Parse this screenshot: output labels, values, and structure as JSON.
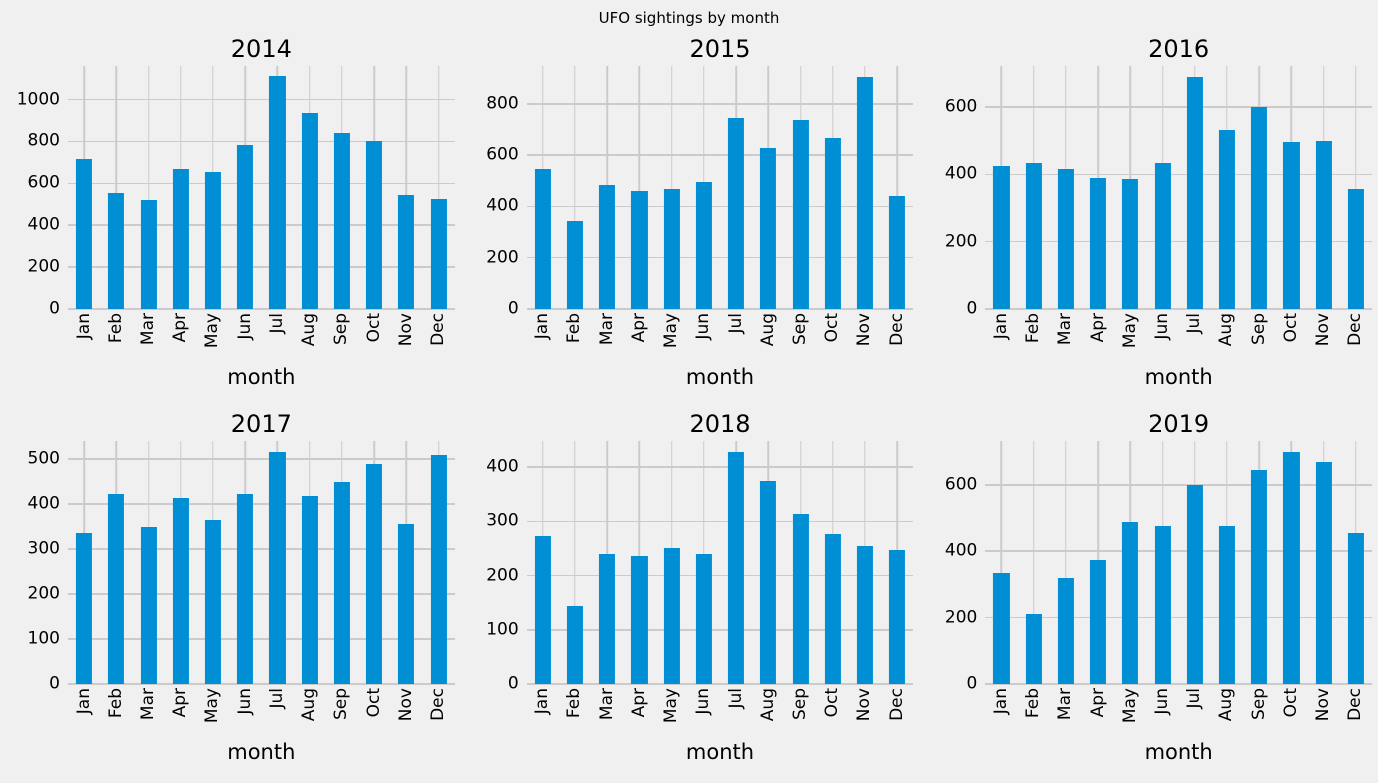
{
  "figure": {
    "title": "UFO sightings by month",
    "background_color": "#f0f0f0",
    "bar_color": "#008fd5",
    "grid_color": "#cbcbcb",
    "text_color": "#000000"
  },
  "chart_data": [
    {
      "type": "bar",
      "title": "2014",
      "xlabel": "month",
      "categories": [
        "Jan",
        "Feb",
        "Mar",
        "Apr",
        "May",
        "Jun",
        "Jul",
        "Aug",
        "Sep",
        "Oct",
        "Nov",
        "Dec"
      ],
      "values": [
        715,
        555,
        520,
        670,
        655,
        785,
        1110,
        935,
        840,
        800,
        545,
        525
      ],
      "yticks": [
        0,
        200,
        400,
        600,
        800,
        1000
      ],
      "ylim": [
        0,
        1160
      ],
      "grid": true,
      "legend": "none"
    },
    {
      "type": "bar",
      "title": "2015",
      "xlabel": "month",
      "categories": [
        "Jan",
        "Feb",
        "Mar",
        "Apr",
        "May",
        "Jun",
        "Jul",
        "Aug",
        "Sep",
        "Oct",
        "Nov",
        "Dec"
      ],
      "values": [
        545,
        345,
        485,
        460,
        467,
        495,
        745,
        630,
        737,
        667,
        905,
        440
      ],
      "yticks": [
        0,
        200,
        400,
        600,
        800
      ],
      "ylim": [
        0,
        948
      ],
      "grid": true,
      "legend": "none"
    },
    {
      "type": "bar",
      "title": "2016",
      "xlabel": "month",
      "categories": [
        "Jan",
        "Feb",
        "Mar",
        "Apr",
        "May",
        "Jun",
        "Jul",
        "Aug",
        "Sep",
        "Oct",
        "Nov",
        "Dec"
      ],
      "values": [
        425,
        435,
        415,
        390,
        385,
        435,
        690,
        533,
        600,
        495,
        500,
        358
      ],
      "yticks": [
        0,
        200,
        400,
        600
      ],
      "ylim": [
        0,
        722
      ],
      "grid": true,
      "legend": "none"
    },
    {
      "type": "bar",
      "title": "2017",
      "xlabel": "month",
      "categories": [
        "Jan",
        "Feb",
        "Mar",
        "Apr",
        "May",
        "Jun",
        "Jul",
        "Aug",
        "Sep",
        "Oct",
        "Nov",
        "Dec"
      ],
      "values": [
        335,
        422,
        350,
        414,
        365,
        422,
        516,
        417,
        449,
        488,
        355,
        508
      ],
      "yticks": [
        0,
        100,
        200,
        300,
        400,
        500
      ],
      "ylim": [
        0,
        540
      ],
      "grid": true,
      "legend": "none"
    },
    {
      "type": "bar",
      "title": "2018",
      "xlabel": "month",
      "categories": [
        "Jan",
        "Feb",
        "Mar",
        "Apr",
        "May",
        "Jun",
        "Jul",
        "Aug",
        "Sep",
        "Oct",
        "Nov",
        "Dec"
      ],
      "values": [
        272,
        143,
        240,
        236,
        250,
        240,
        428,
        374,
        313,
        276,
        254,
        247
      ],
      "yticks": [
        0,
        100,
        200,
        300,
        400
      ],
      "ylim": [
        0,
        448
      ],
      "grid": true,
      "legend": "none"
    },
    {
      "type": "bar",
      "title": "2019",
      "xlabel": "month",
      "categories": [
        "Jan",
        "Feb",
        "Mar",
        "Apr",
        "May",
        "Jun",
        "Jul",
        "Aug",
        "Sep",
        "Oct",
        "Nov",
        "Dec"
      ],
      "values": [
        335,
        210,
        320,
        375,
        488,
        477,
        600,
        477,
        645,
        700,
        668,
        455
      ],
      "yticks": [
        0,
        200,
        400,
        600
      ],
      "ylim": [
        0,
        732
      ],
      "grid": true,
      "legend": "none"
    }
  ]
}
